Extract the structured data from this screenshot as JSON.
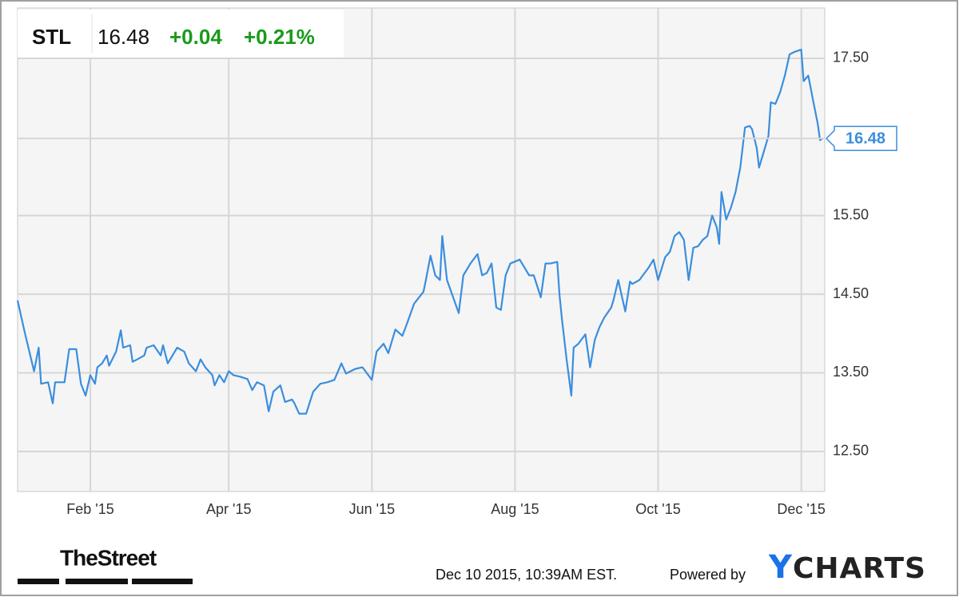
{
  "quote": {
    "symbol": "STL",
    "price": "16.48",
    "change": "+0.04",
    "change_percent": "+0.21%"
  },
  "chart_data": {
    "type": "line",
    "x": [
      0,
      3,
      5,
      7,
      9,
      10,
      13,
      15,
      16,
      20,
      22,
      25,
      27,
      29,
      31,
      33,
      34,
      36,
      38,
      39,
      42,
      44,
      45,
      48,
      49,
      51,
      54,
      55,
      58,
      61,
      62,
      64,
      66,
      68,
      71,
      73,
      76,
      78,
      80,
      83,
      84,
      86,
      88,
      90,
      92,
      95,
      98,
      100,
      102,
      105,
      107,
      109,
      112,
      114,
      117,
      118,
      120,
      123,
      126,
      129,
      132,
      135,
      138,
      140,
      144,
      147,
      151,
      153,
      156,
      158,
      161,
      164,
      166,
      169,
      173,
      174,
      176,
      178,
      180,
      181,
      183,
      186,
      188,
      190,
      193,
      196,
      198,
      200,
      202,
      204,
      206,
      208,
      210,
      214,
      216,
      218,
      220,
      223,
      225,
      227,
      230,
      231,
      232,
      234,
      236,
      237,
      239,
      242,
      244,
      246,
      248,
      250,
      253,
      254,
      256,
      259,
      261,
      262,
      265,
      267,
      269,
      271,
      273,
      276,
      278,
      280,
      282,
      284,
      286,
      288,
      290,
      292,
      294,
      296,
      298,
      299,
      300,
      302,
      304,
      306,
      308,
      310,
      312,
      313,
      315,
      316,
      318,
      320,
      321,
      323,
      325,
      327,
      329,
      331,
      334,
      335,
      337,
      339,
      341,
      342,
      343
    ],
    "series": [
      {
        "name": "STL",
        "color": "#3a8ede",
        "values": [
          14.42,
          14.02,
          13.77,
          13.52,
          13.82,
          13.36,
          13.38,
          13.11,
          13.38,
          13.38,
          13.8,
          13.8,
          13.36,
          13.21,
          13.47,
          13.36,
          13.57,
          13.62,
          13.72,
          13.59,
          13.77,
          14.04,
          13.82,
          13.85,
          13.64,
          13.67,
          13.72,
          13.82,
          13.85,
          13.72,
          13.85,
          13.62,
          13.72,
          13.82,
          13.77,
          13.62,
          13.52,
          13.67,
          13.57,
          13.47,
          13.34,
          13.47,
          13.38,
          13.52,
          13.47,
          13.45,
          13.42,
          13.28,
          13.38,
          13.34,
          13.01,
          13.26,
          13.34,
          13.13,
          13.16,
          13.11,
          12.98,
          12.98,
          13.26,
          13.36,
          13.38,
          13.41,
          13.62,
          13.49,
          13.55,
          13.57,
          13.41,
          13.77,
          13.87,
          13.75,
          14.05,
          13.97,
          14.13,
          14.38,
          14.53,
          14.68,
          14.99,
          14.74,
          14.68,
          15.24,
          14.68,
          14.43,
          14.26,
          14.74,
          14.89,
          15.01,
          14.74,
          14.77,
          14.89,
          14.33,
          14.3,
          14.74,
          14.89,
          14.94,
          14.84,
          14.74,
          14.74,
          14.46,
          14.89,
          14.89,
          14.91,
          14.48,
          14.18,
          13.67,
          13.21,
          13.82,
          13.87,
          13.99,
          13.57,
          13.92,
          14.08,
          14.2,
          14.33,
          14.43,
          14.68,
          14.28,
          14.66,
          14.63,
          14.68,
          14.76,
          14.84,
          14.94,
          14.68,
          14.97,
          15.04,
          15.24,
          15.29,
          15.19,
          14.68,
          15.09,
          15.11,
          15.19,
          15.24,
          15.5,
          15.35,
          15.14,
          15.8,
          15.45,
          15.6,
          15.8,
          16.11,
          16.62,
          16.64,
          16.6,
          16.36,
          16.11,
          16.31,
          16.51,
          16.94,
          16.92,
          17.07,
          17.28,
          17.55,
          17.58,
          17.61,
          17.21,
          17.28,
          16.97,
          16.67,
          16.46,
          16.48
        ]
      }
    ],
    "xlim": [
      0,
      344
    ],
    "xticks": [
      {
        "value": 31,
        "label": "Feb '15"
      },
      {
        "value": 90,
        "label": "Apr '15"
      },
      {
        "value": 151,
        "label": "Jun '15"
      },
      {
        "value": 212,
        "label": "Aug '15"
      },
      {
        "value": 273,
        "label": "Oct '15"
      },
      {
        "value": 334,
        "label": "Dec '15"
      }
    ],
    "ylim": [
      11.99,
      18.14
    ],
    "yticks": [
      {
        "value": 12.5,
        "label": "12.50"
      },
      {
        "value": 13.5,
        "label": "13.50"
      },
      {
        "value": 14.5,
        "label": "14.50"
      },
      {
        "value": 15.5,
        "label": "15.50"
      },
      {
        "value": 17.5,
        "label": "17.50"
      }
    ],
    "grid": true
  },
  "footer": {
    "publisher": "TheStreet",
    "timestamp": "Dec 10 2015, 10:39AM EST.",
    "powered_by": "Powered by",
    "brand": "YCHARTS"
  }
}
